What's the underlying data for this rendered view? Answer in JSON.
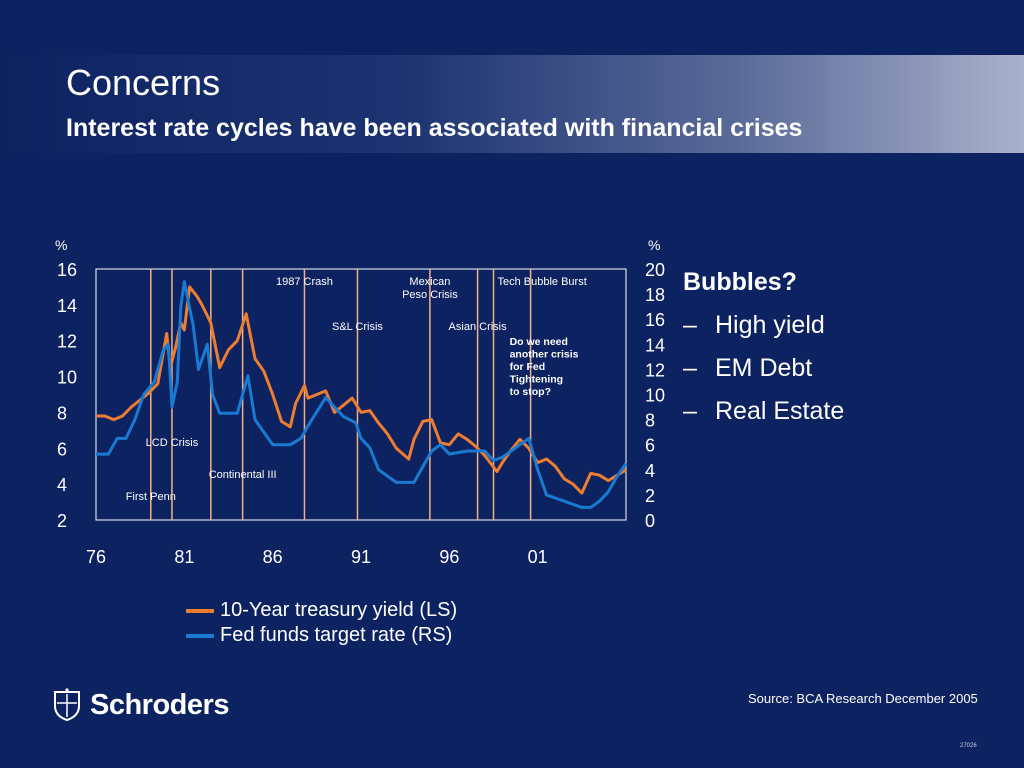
{
  "slide": {
    "title": "Concerns",
    "subtitle": "Interest rate cycles have been associated with financial crises",
    "source": "Source: BCA Research December 2005",
    "code": "27026",
    "logo_text": "Schroders",
    "bullets": {
      "heading": "Bubbles?",
      "dash": "–",
      "items": [
        "High yield",
        "EM Debt",
        "Real Estate"
      ]
    },
    "colors": {
      "background": "#0d2260",
      "treasury": "#ed7d31",
      "fed_funds": "#1a7ad1",
      "crisis_line": "#f4b183"
    }
  },
  "chart_data": {
    "type": "line",
    "left_unit": "%",
    "right_unit": "%",
    "left_ticks": [
      16,
      14,
      12,
      10,
      8,
      6,
      4,
      2
    ],
    "right_ticks": [
      20,
      18,
      16,
      14,
      12,
      10,
      8,
      6,
      4,
      2,
      0
    ],
    "x_ticks": [
      "76",
      "81",
      "86",
      "91",
      "96",
      "01"
    ],
    "ylim_left": [
      2,
      16
    ],
    "ylim_right": [
      0,
      20
    ],
    "xlim": [
      1976,
      2006
    ],
    "series": [
      {
        "name": "10-Year treasury yield (LS)",
        "axis": "left",
        "x": [
          1976,
          1976.5,
          1977,
          1977.5,
          1978,
          1978.5,
          1979,
          1979.5,
          1980,
          1980.2,
          1980.5,
          1980.8,
          1981,
          1981.3,
          1981.7,
          1982,
          1982.5,
          1983,
          1983.5,
          1984,
          1984.5,
          1985,
          1985.5,
          1986,
          1986.5,
          1987,
          1987.3,
          1987.8,
          1988,
          1988.5,
          1989,
          1989.5,
          1990,
          1990.5,
          1991,
          1991.5,
          1992,
          1992.5,
          1993,
          1993.7,
          1994,
          1994.5,
          1995,
          1995.5,
          1996,
          1996.5,
          1997,
          1997.5,
          1998,
          1998.7,
          1999,
          1999.5,
          2000,
          2000.5,
          2001,
          2001.5,
          2002,
          2002.5,
          2003,
          2003.5,
          2004,
          2004.5,
          2005,
          2005.5,
          2006
        ],
        "values": [
          7.8,
          7.8,
          7.6,
          7.8,
          8.3,
          8.7,
          9.1,
          9.6,
          12.4,
          10.5,
          11.6,
          13.0,
          12.6,
          15.0,
          14.5,
          14.0,
          13.0,
          10.5,
          11.5,
          12.0,
          13.5,
          11.0,
          10.3,
          9.0,
          7.5,
          7.2,
          8.5,
          9.5,
          8.8,
          9.0,
          9.2,
          8.0,
          8.4,
          8.8,
          8.0,
          8.1,
          7.4,
          6.8,
          6.0,
          5.4,
          6.5,
          7.5,
          7.6,
          6.3,
          6.2,
          6.8,
          6.5,
          6.1,
          5.6,
          4.7,
          5.2,
          5.9,
          6.5,
          6.0,
          5.2,
          5.4,
          5.0,
          4.3,
          4.0,
          3.5,
          4.6,
          4.5,
          4.2,
          4.5,
          4.8
        ]
      },
      {
        "name": "Fed funds target rate (RS)",
        "axis": "right",
        "x": [
          1976,
          1976.7,
          1977.2,
          1977.7,
          1978.2,
          1978.7,
          1979.3,
          1979.8,
          1980.1,
          1980.3,
          1980.6,
          1980.8,
          1981,
          1981.5,
          1981.8,
          1982.3,
          1982.6,
          1983,
          1984,
          1984.6,
          1985,
          1986,
          1986.6,
          1987,
          1987.6,
          1988,
          1989,
          1990,
          1990.7,
          1991,
          1991.5,
          1992,
          1993,
          1994,
          1995,
          1995.5,
          1996,
          1997,
          1998,
          1998.5,
          1999,
          2000,
          2000.5,
          2001,
          2001.5,
          2002,
          2003,
          2003.5,
          2004,
          2004.5,
          2005,
          2005.5,
          2006
        ],
        "values": [
          5.25,
          5.25,
          6.5,
          6.5,
          8.0,
          10.0,
          11.0,
          13.5,
          14.0,
          9.0,
          11.0,
          17.0,
          19.0,
          15.5,
          12.0,
          14.0,
          10.0,
          8.5,
          8.5,
          11.5,
          8.0,
          6.0,
          6.0,
          6.0,
          6.5,
          7.5,
          9.75,
          8.25,
          7.75,
          6.5,
          5.75,
          4.0,
          3.0,
          3.0,
          5.5,
          6.0,
          5.25,
          5.5,
          5.5,
          4.75,
          5.0,
          6.0,
          6.5,
          4.0,
          2.0,
          1.75,
          1.25,
          1.0,
          1.0,
          1.5,
          2.25,
          3.5,
          4.5
        ]
      }
    ],
    "events": [
      {
        "year": 1979.1,
        "label": "First Penn",
        "label_row": 7
      },
      {
        "year": 1980.3,
        "label": "LCD Crisis",
        "label_row": 5
      },
      {
        "year": 1982.5,
        "label": "",
        "label_row": 0
      },
      {
        "year": 1984.3,
        "label": "Continental III",
        "label_row": 6
      },
      {
        "year": 1987.8,
        "label": "1987 Crash",
        "label_row": 1
      },
      {
        "year": 1990.8,
        "label": "S&L Crisis",
        "label_row": 3
      },
      {
        "year": 1994.9,
        "label": "Mexican\nPeso Crisis",
        "label_row": 2
      },
      {
        "year": 1997.6,
        "label": "Asian Crisis",
        "label_row": 3
      },
      {
        "year": 1998.5,
        "label": "Tech Bubble Burst",
        "label_row": 1
      },
      {
        "year": 2000.6,
        "label": "Do we need\nanother crisis\nfor Fed\nTightening\nto stop?",
        "label_row": 4
      }
    ]
  }
}
